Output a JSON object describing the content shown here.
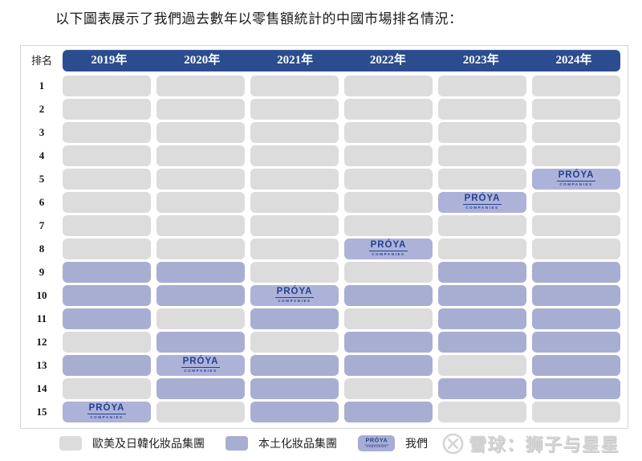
{
  "title": "以下圖表展示了我們過去數年以零售額統計的中國市場排名情況：",
  "proya_logo": {
    "name": "PRÓYA",
    "sub": "COMPANIES"
  },
  "watermark": {
    "text": "雪球：狮子与星星"
  },
  "legend": {
    "items": [
      {
        "key": "foreign",
        "label": "歐美及日韓化妝品集團"
      },
      {
        "key": "local",
        "label": "本土化妝品集團"
      },
      {
        "key": "proya",
        "label": "我們"
      }
    ]
  },
  "chart_data": {
    "type": "heatmap",
    "title": "以下圖表展示了我們過去數年以零售額統計的中國市場排名情況：",
    "rank_header": "排名",
    "columns": [
      "2019年",
      "2020年",
      "2021年",
      "2022年",
      "2023年",
      "2024年"
    ],
    "row_labels": [
      "1",
      "2",
      "3",
      "4",
      "5",
      "6",
      "7",
      "8",
      "9",
      "10",
      "11",
      "12",
      "13",
      "14",
      "15"
    ],
    "cell_legend": {
      "foreign": "歐美及日韓化妝品集團",
      "local": "本土化妝品集團",
      "proya": "我們"
    },
    "grid": [
      [
        "foreign",
        "foreign",
        "foreign",
        "foreign",
        "foreign",
        "foreign"
      ],
      [
        "foreign",
        "foreign",
        "foreign",
        "foreign",
        "foreign",
        "foreign"
      ],
      [
        "foreign",
        "foreign",
        "foreign",
        "foreign",
        "foreign",
        "foreign"
      ],
      [
        "foreign",
        "foreign",
        "foreign",
        "foreign",
        "foreign",
        "foreign"
      ],
      [
        "foreign",
        "foreign",
        "foreign",
        "foreign",
        "foreign",
        "proya"
      ],
      [
        "foreign",
        "foreign",
        "foreign",
        "foreign",
        "proya",
        "foreign"
      ],
      [
        "foreign",
        "foreign",
        "foreign",
        "foreign",
        "foreign",
        "foreign"
      ],
      [
        "foreign",
        "foreign",
        "foreign",
        "proya",
        "foreign",
        "foreign"
      ],
      [
        "local",
        "local",
        "foreign",
        "foreign",
        "local",
        "local"
      ],
      [
        "local",
        "local",
        "proya",
        "local",
        "local",
        "local"
      ],
      [
        "local",
        "foreign",
        "local",
        "foreign",
        "local",
        "local"
      ],
      [
        "foreign",
        "local",
        "foreign",
        "local",
        "local",
        "local"
      ],
      [
        "local",
        "proya",
        "local",
        "local",
        "foreign",
        "local"
      ],
      [
        "foreign",
        "local",
        "local",
        "foreign",
        "local",
        "local"
      ],
      [
        "proya",
        "foreign",
        "local",
        "local",
        "foreign",
        "foreign"
      ]
    ],
    "proya_rank_by_year": {
      "2019年": 15,
      "2020年": 13,
      "2021年": 10,
      "2022年": 8,
      "2023年": 6,
      "2024年": 5
    },
    "legend_position": "bottom",
    "colors": {
      "header_bar": "#2b4c8e",
      "foreign_cell": "#dcdcdc",
      "local_cell": "#a8aed2",
      "proya_cell": "#adb2d9",
      "proya_logo_text": "#24418f",
      "watermark_text": "#d5d5d5"
    }
  }
}
